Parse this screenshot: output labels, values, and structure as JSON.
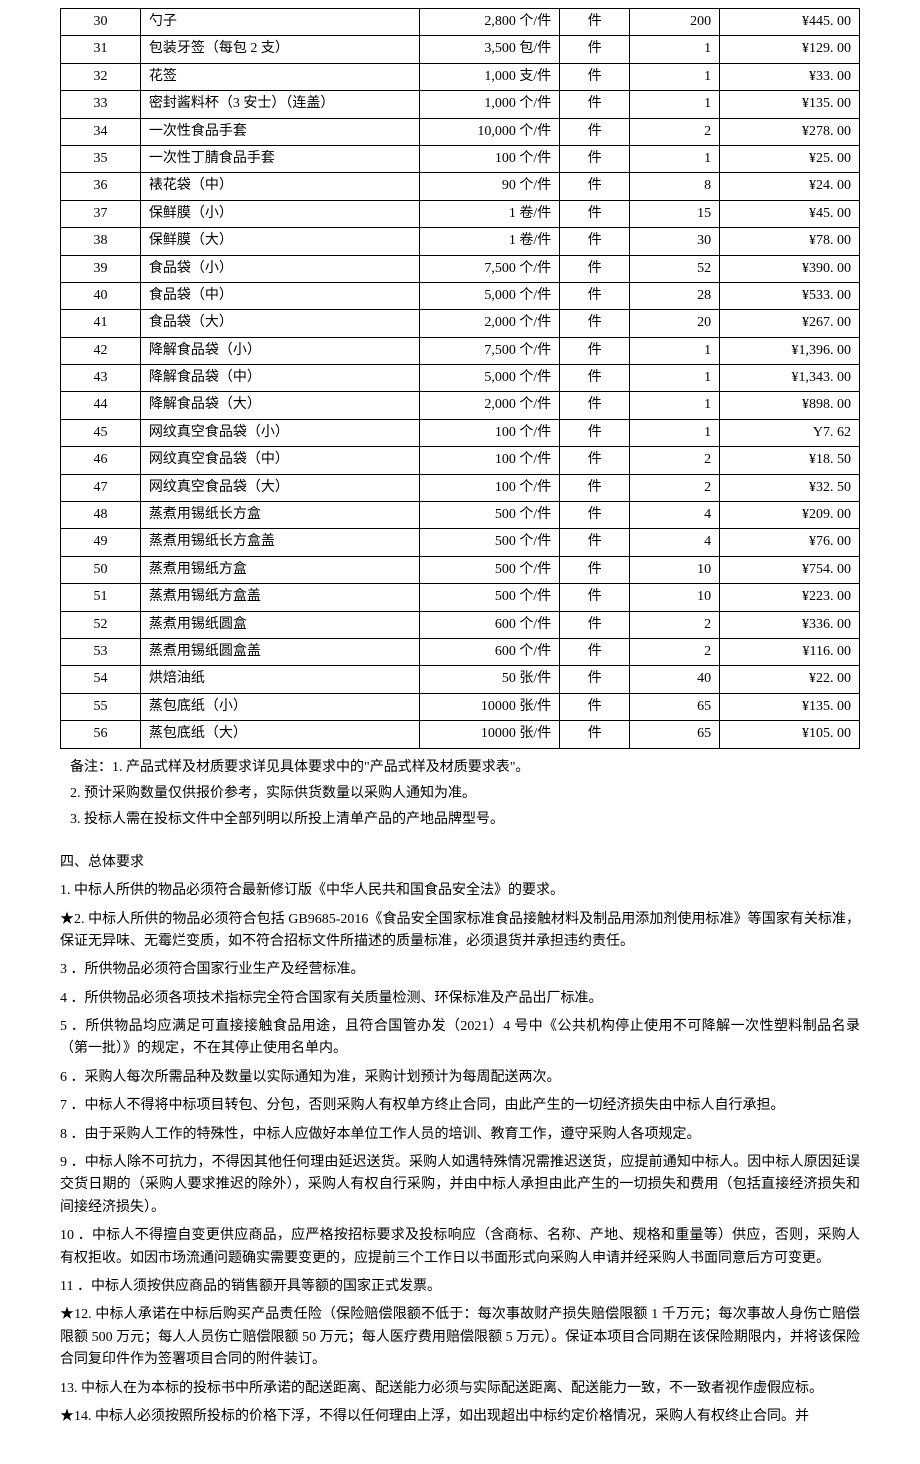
{
  "table": {
    "rows": [
      {
        "num": "30",
        "name": "勺子",
        "spec": "2,800 个/件",
        "unit": "件",
        "qty": "200",
        "price": "¥445. 00"
      },
      {
        "num": "31",
        "name": "包装牙签（每包 2 支）",
        "spec": "3,500 包/件",
        "unit": "件",
        "qty": "1",
        "price": "¥129. 00"
      },
      {
        "num": "32",
        "name": "花签",
        "spec": "1,000 支/件",
        "unit": "件",
        "qty": "1",
        "price": "¥33. 00"
      },
      {
        "num": "33",
        "name": "密封酱料杯（3 安士）（连盖）",
        "spec": "1,000 个/件",
        "unit": "件",
        "qty": "1",
        "price": "¥135. 00"
      },
      {
        "num": "34",
        "name": "一次性食品手套",
        "spec": "10,000 个/件",
        "unit": "件",
        "qty": "2",
        "price": "¥278. 00"
      },
      {
        "num": "35",
        "name": "一次性丁腈食品手套",
        "spec": "100 个/件",
        "unit": "件",
        "qty": "1",
        "price": "¥25. 00"
      },
      {
        "num": "36",
        "name": "裱花袋（中）",
        "spec": "90 个/件",
        "unit": "件",
        "qty": "8",
        "price": "¥24. 00"
      },
      {
        "num": "37",
        "name": "保鲜膜（小）",
        "spec": "1 卷/件",
        "unit": "件",
        "qty": "15",
        "price": "¥45. 00"
      },
      {
        "num": "38",
        "name": "保鲜膜（大）",
        "spec": "1 卷/件",
        "unit": "件",
        "qty": "30",
        "price": "¥78. 00"
      },
      {
        "num": "39",
        "name": "食品袋（小）",
        "spec": "7,500 个/件",
        "unit": "件",
        "qty": "52",
        "price": "¥390. 00"
      },
      {
        "num": "40",
        "name": "食品袋（中）",
        "spec": "5,000 个/件",
        "unit": "件",
        "qty": "28",
        "price": "¥533. 00"
      },
      {
        "num": "41",
        "name": "食品袋（大）",
        "spec": "2,000 个/件",
        "unit": "件",
        "qty": "20",
        "price": "¥267. 00"
      },
      {
        "num": "42",
        "name": "降解食品袋（小）",
        "spec": "7,500 个/件",
        "unit": "件",
        "qty": "1",
        "price": "¥1,396. 00"
      },
      {
        "num": "43",
        "name": "降解食品袋（中）",
        "spec": "5,000 个/件",
        "unit": "件",
        "qty": "1",
        "price": "¥1,343. 00"
      },
      {
        "num": "44",
        "name": "降解食品袋（大）",
        "spec": "2,000 个/件",
        "unit": "件",
        "qty": "1",
        "price": "¥898. 00"
      },
      {
        "num": "45",
        "name": "网纹真空食品袋（小）",
        "spec": "100 个/件",
        "unit": "件",
        "qty": "1",
        "price": "Y7. 62"
      },
      {
        "num": "46",
        "name": "网纹真空食品袋（中）",
        "spec": "100 个/件",
        "unit": "件",
        "qty": "2",
        "price": "¥18. 50"
      },
      {
        "num": "47",
        "name": "网纹真空食品袋（大）",
        "spec": "100 个/件",
        "unit": "件",
        "qty": "2",
        "price": "¥32. 50"
      },
      {
        "num": "48",
        "name": "蒸煮用锡纸长方盒",
        "spec": "500 个/件",
        "unit": "件",
        "qty": "4",
        "price": "¥209. 00"
      },
      {
        "num": "49",
        "name": "蒸煮用锡纸长方盒盖",
        "spec": "500 个/件",
        "unit": "件",
        "qty": "4",
        "price": "¥76. 00"
      },
      {
        "num": "50",
        "name": "蒸煮用锡纸方盒",
        "spec": "500 个/件",
        "unit": "件",
        "qty": "10",
        "price": "¥754. 00"
      },
      {
        "num": "51",
        "name": "蒸煮用锡纸方盒盖",
        "spec": "500 个/件",
        "unit": "件",
        "qty": "10",
        "price": "¥223. 00"
      },
      {
        "num": "52",
        "name": "蒸煮用锡纸圆盒",
        "spec": "600 个/件",
        "unit": "件",
        "qty": "2",
        "price": "¥336. 00"
      },
      {
        "num": "53",
        "name": "蒸煮用锡纸圆盒盖",
        "spec": "600 个/件",
        "unit": "件",
        "qty": "2",
        "price": "¥116. 00"
      },
      {
        "num": "54",
        "name": "烘焙油纸",
        "spec": "50 张/件",
        "unit": "件",
        "qty": "40",
        "price": "¥22. 00"
      },
      {
        "num": "55",
        "name": "蒸包底纸（小）",
        "spec": "10000 张/件",
        "unit": "件",
        "qty": "65",
        "price": "¥135. 00"
      },
      {
        "num": "56",
        "name": "蒸包底纸（大）",
        "spec": "10000 张/件",
        "unit": "件",
        "qty": "65",
        "price": "¥105. 00"
      }
    ]
  },
  "notes": {
    "n1": "备注：1. 产品式样及材质要求详见具体要求中的\"产品式样及材质要求表\"。",
    "n2": "2. 预计采购数量仅供报价参考，实际供货数量以采购人通知为准。",
    "n3": "3. 投标人需在投标文件中全部列明以所投上清单产品的产地品牌型号。"
  },
  "section_title": "四、总体要求",
  "requirements": {
    "r1": "1. 中标人所供的物品必须符合最新修订版《中华人民共和国食品安全法》的要求。",
    "r2": "★2. 中标人所供的物品必须符合包括 GB9685-2016《食品安全国家标准食品接触材料及制品用添加剂使用标准》等国家有关标准，保证无异味、无霉烂变质，如不符合招标文件所描述的质量标准，必须退货并承担违约责任。",
    "r3": "3 ．所供物品必须符合国家行业生产及经营标准。",
    "r4": "4 ．所供物品必须各项技术指标完全符合国家有关质量检测、环保标准及产品出厂标准。",
    "r5": "5 ．所供物品均应满足可直接接触食品用途，且符合国管办发（2021）4 号中《公共机构停止使用不可降解一次性塑料制品名录（第一批）》的规定，不在其停止使用名单内。",
    "r6": "6 ．采购人每次所需品种及数量以实际通知为准，采购计划预计为每周配送两次。",
    "r7": "7 ．中标人不得将中标项目转包、分包，否则采购人有权单方终止合同，由此产生的一切经济损失由中标人自行承担。",
    "r8": "8 ．由于采购人工作的特殊性，中标人应做好本单位工作人员的培训、教育工作，遵守采购人各项规定。",
    "r9": "9 ．中标人除不可抗力，不得因其他任何理由延迟送货。采购人如遇特殊情况需推迟送货，应提前通知中标人。因中标人原因延误交货日期的（采购人要求推迟的除外），采购人有权自行采购，并由中标人承担由此产生的一切损失和费用（包括直接经济损失和间接经济损失）。",
    "r10": "10 ．中标人不得擅自变更供应商品，应严格按招标要求及投标响应（含商标、名称、产地、规格和重量等）供应，否则，采购人有权拒收。如因市场流通问题确实需要变更的，应提前三个工作日以书面形式向采购人申请并经采购人书面同意后方可变更。",
    "r11": "11 ．中标人须按供应商品的销售额开具等额的国家正式发票。",
    "r12": "★12. 中标人承诺在中标后购买产品责任险（保险赔偿限额不低于：每次事故财产损失赔偿限额 1 千万元；每次事故人身伤亡赔偿限额 500 万元；每人人员伤亡赔偿限额 50 万元；每人医疗费用赔偿限额 5 万元）。保证本项目合同期在该保险期限内，并将该保险合同复印件作为签署项目合同的附件装订。",
    "r13": "13. 中标人在为本标的投标书中所承诺的配送距离、配送能力必须与实际配送距离、配送能力一致，不一致者视作虚假应标。",
    "r14": "★14. 中标人必须按照所投标的价格下浮，不得以任何理由上浮，如出现超出中标约定价格情况，采购人有权终止合同。并"
  }
}
